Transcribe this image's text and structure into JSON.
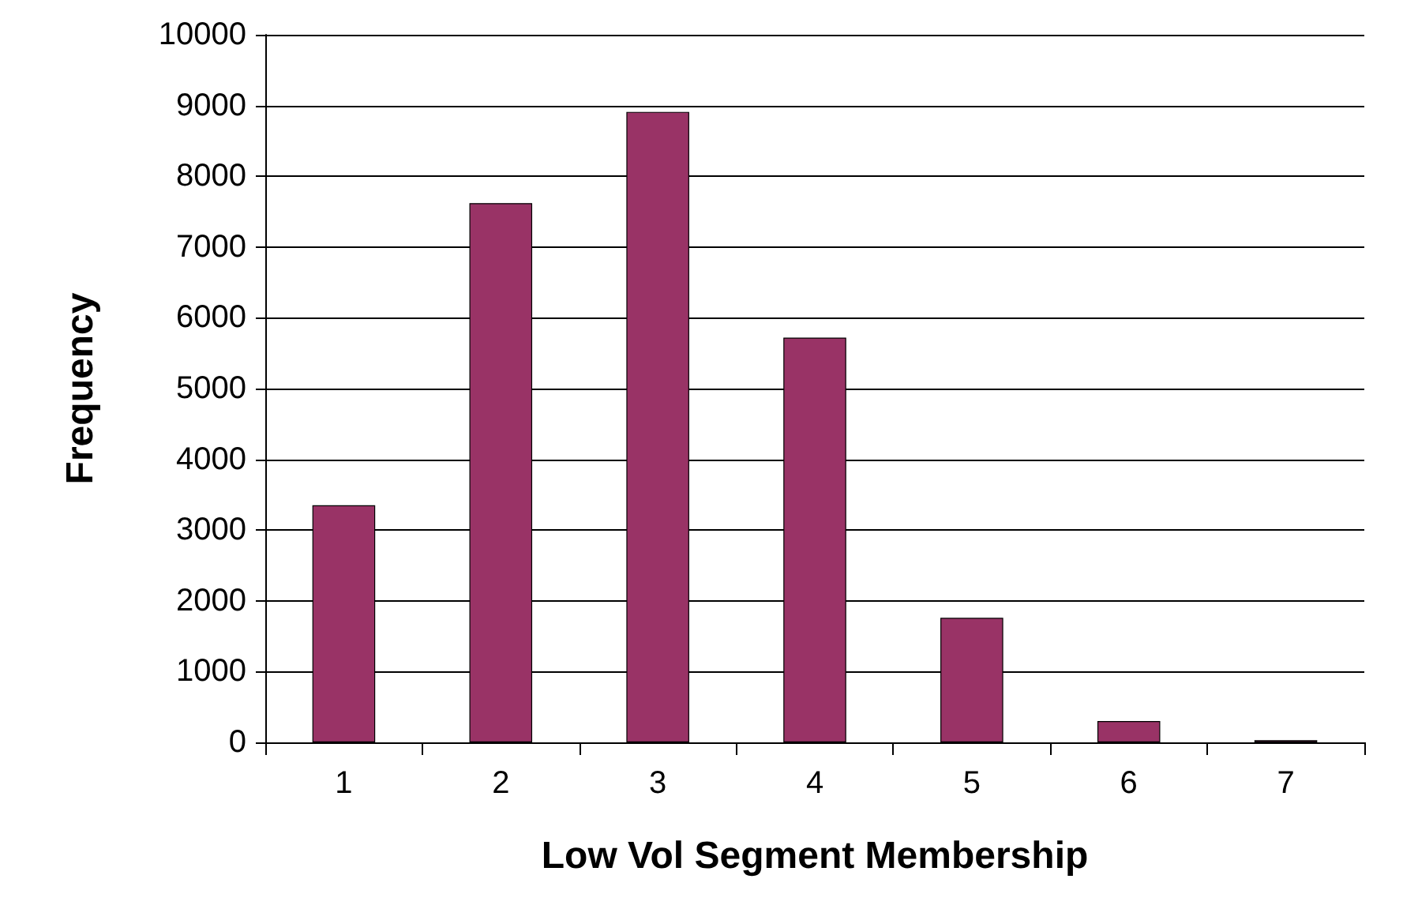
{
  "chart_data": {
    "type": "bar",
    "xlabel": "Low Vol Segment Membership",
    "ylabel": "Frequency",
    "categories": [
      "1",
      "2",
      "3",
      "4",
      "5",
      "6",
      "7"
    ],
    "values": [
      3350,
      7620,
      8910,
      5720,
      1760,
      300,
      30
    ],
    "color": "#993366",
    "ylim": [
      0,
      10000
    ],
    "yticks": [
      0,
      1000,
      2000,
      3000,
      4000,
      5000,
      6000,
      7000,
      8000,
      9000,
      10000
    ],
    "grid": "y"
  }
}
